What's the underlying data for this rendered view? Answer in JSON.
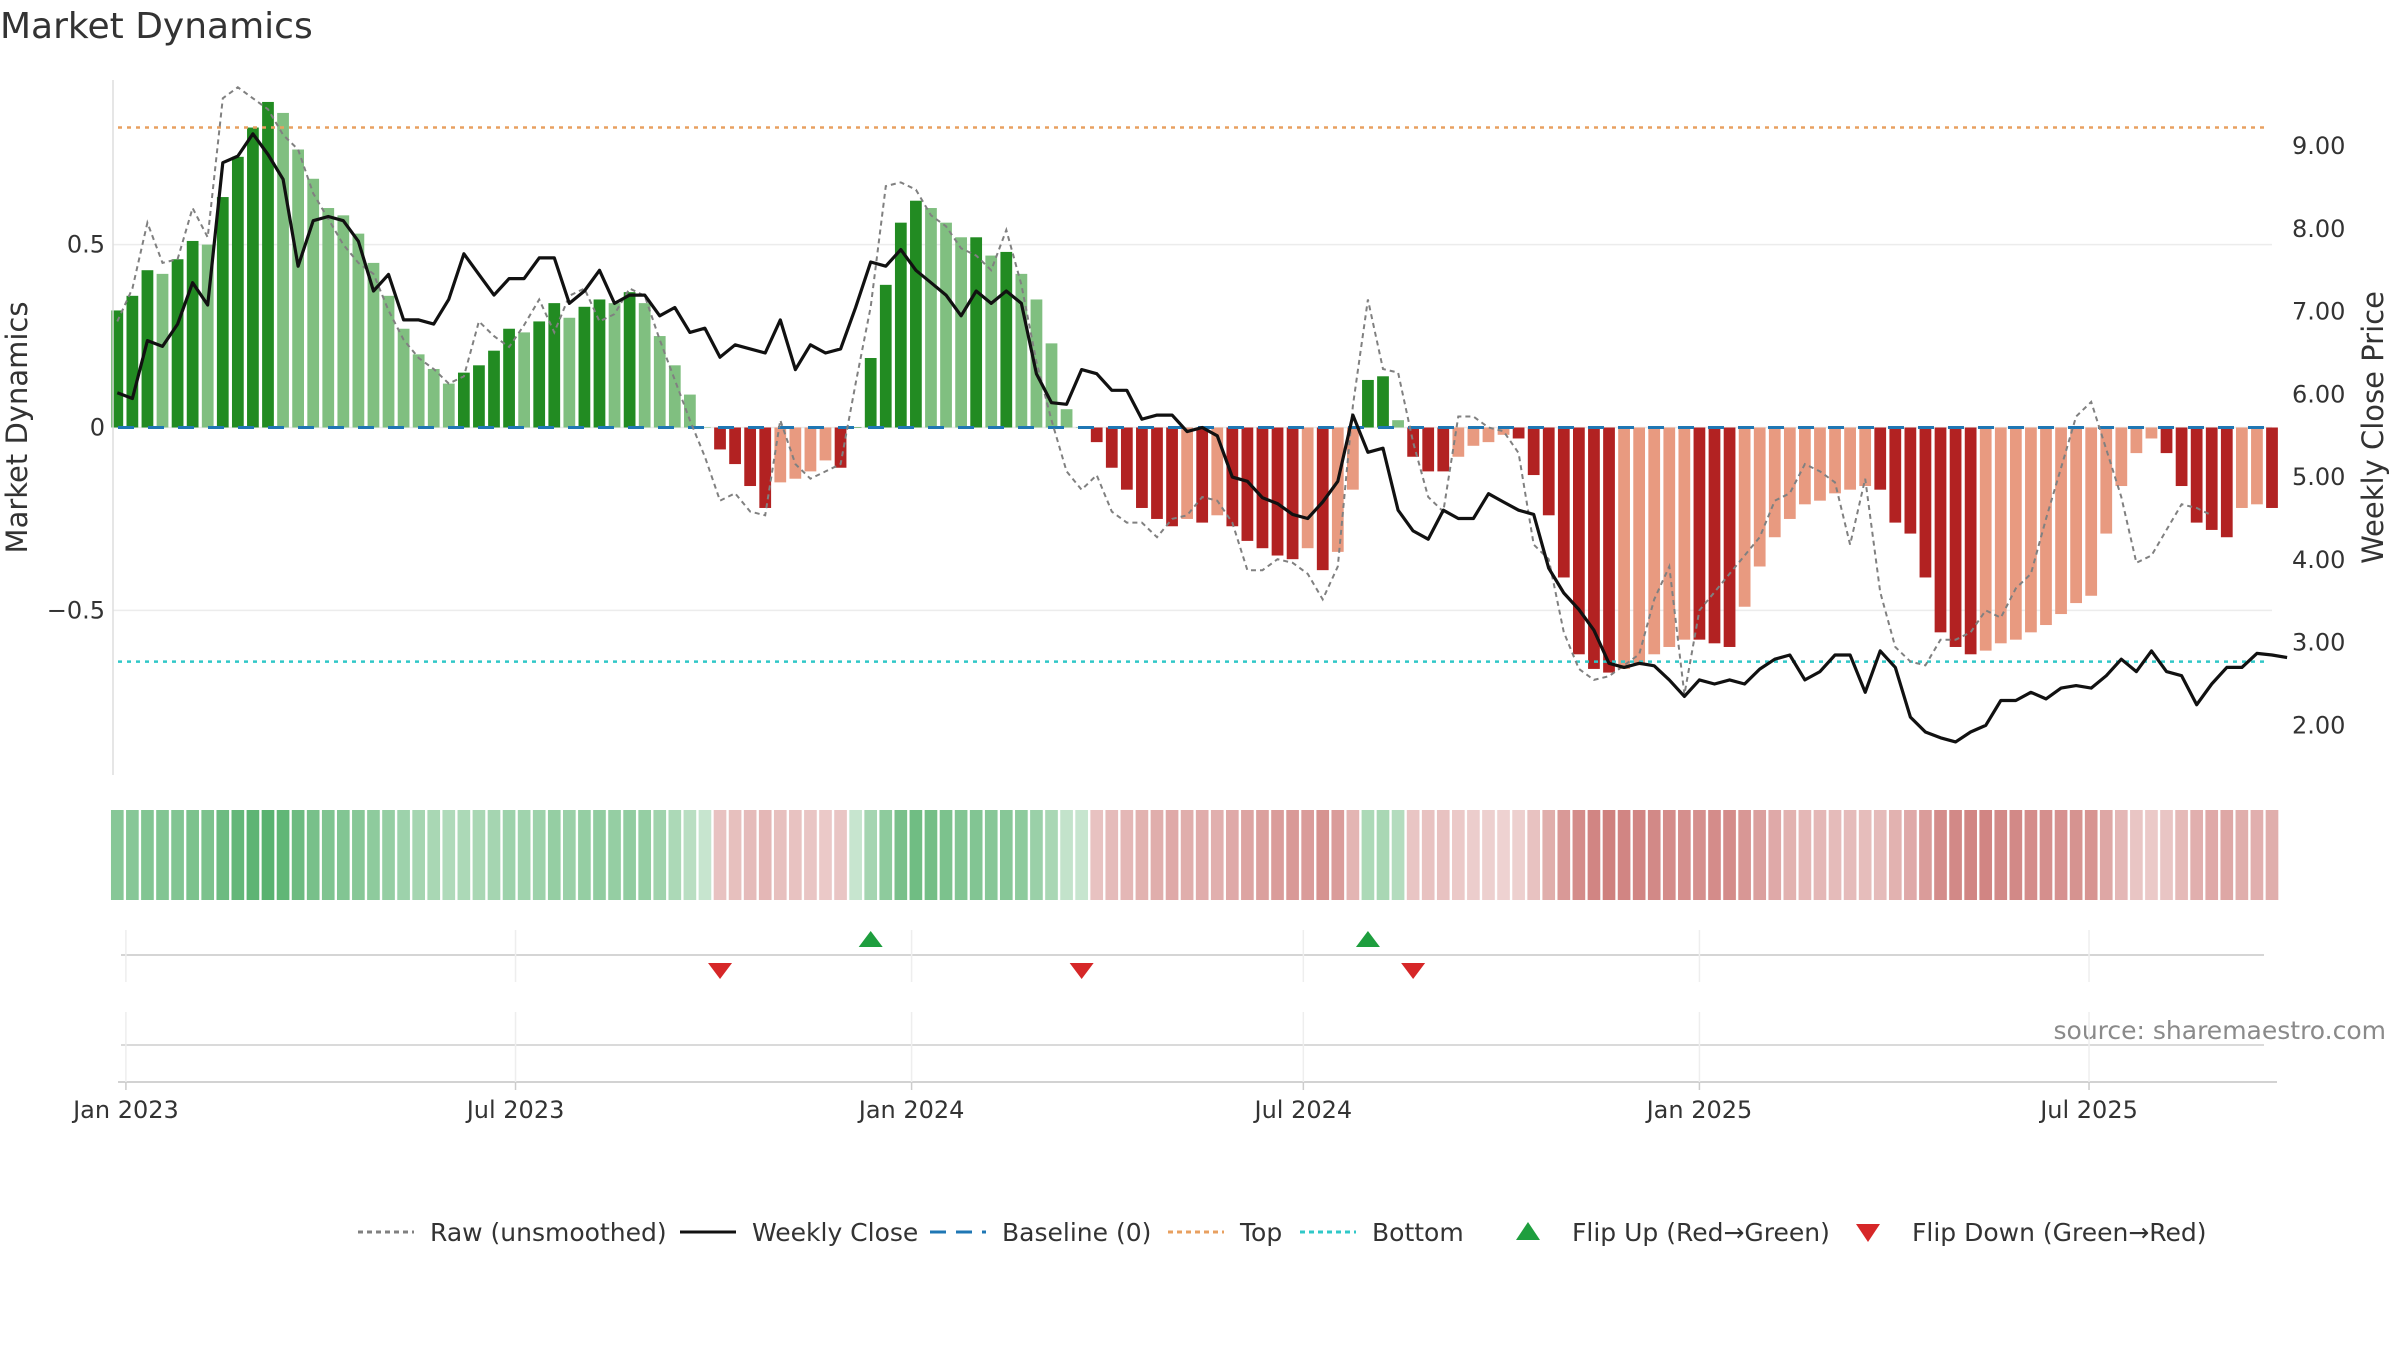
{
  "title": "Market Dynamics",
  "source": "source: sharemaestro.com",
  "colors": {
    "strong_green": "#228b22",
    "light_green": "#80bf80",
    "strong_red": "#b22222",
    "light_red": "#e89a80",
    "raw": "#808080",
    "close": "#111111",
    "baseline": "#1f77b4",
    "top": "#e8a060",
    "bottom": "#30c8c8",
    "flip_up": "#1e9e3e",
    "flip_down": "#d62728"
  },
  "chart_data": {
    "type": "bar",
    "title": "Market Dynamics",
    "ylabel": "Market Dynamics",
    "y2label": "Weekly Close Price",
    "ylim": [
      -0.95,
      0.95
    ],
    "y2lim": [
      1.4,
      9.8
    ],
    "yticks": [
      {
        "value": 0.5,
        "label": "0.5"
      },
      {
        "value": 0,
        "label": "0"
      },
      {
        "value": -0.5,
        "label": "−0.5"
      }
    ],
    "y2ticks": [
      {
        "value": 9,
        "label": "9.00"
      },
      {
        "value": 8,
        "label": "8.00"
      },
      {
        "value": 7,
        "label": "7.00"
      },
      {
        "value": 6,
        "label": "6.00"
      },
      {
        "value": 5,
        "label": "5.00"
      },
      {
        "value": 4,
        "label": "4.00"
      },
      {
        "value": 3,
        "label": "3.00"
      },
      {
        "value": 2,
        "label": "2.00"
      }
    ],
    "xlim": [
      "2022-12-26",
      "2025-09-24"
    ],
    "xticks": [
      {
        "date": "2023-01-01",
        "label": "Jan 2023"
      },
      {
        "date": "2023-07-01",
        "label": "Jul 2023"
      },
      {
        "date": "2024-01-01",
        "label": "Jan 2024"
      },
      {
        "date": "2024-07-01",
        "label": "Jul 2024"
      },
      {
        "date": "2025-01-01",
        "label": "Jan 2025"
      },
      {
        "date": "2025-07-01",
        "label": "Jul 2025"
      }
    ],
    "start_date": "2022-12-28",
    "week_days": 7,
    "top_level": 0.82,
    "bottom_level": -0.64,
    "baseline": 0,
    "dynamics": [
      0.32,
      0.36,
      0.43,
      0.42,
      0.46,
      0.51,
      0.5,
      0.63,
      0.74,
      0.82,
      0.89,
      0.86,
      0.76,
      0.68,
      0.6,
      0.58,
      0.53,
      0.45,
      0.36,
      0.27,
      0.2,
      0.16,
      0.12,
      0.15,
      0.17,
      0.21,
      0.27,
      0.26,
      0.29,
      0.34,
      0.3,
      0.33,
      0.35,
      0.34,
      0.37,
      0.34,
      0.25,
      0.17,
      0.09,
      0.0,
      -0.06,
      -0.1,
      -0.16,
      -0.22,
      -0.15,
      -0.14,
      -0.12,
      -0.09,
      -0.11,
      0.0,
      0.19,
      0.39,
      0.56,
      0.62,
      0.6,
      0.56,
      0.52,
      0.52,
      0.47,
      0.48,
      0.42,
      0.35,
      0.23,
      0.05,
      0.0,
      -0.04,
      -0.11,
      -0.17,
      -0.22,
      -0.25,
      -0.27,
      -0.25,
      -0.26,
      -0.24,
      -0.27,
      -0.31,
      -0.33,
      -0.35,
      -0.36,
      -0.33,
      -0.39,
      -0.34,
      -0.17,
      0.13,
      0.14,
      0.02,
      -0.08,
      -0.12,
      -0.12,
      -0.08,
      -0.05,
      -0.04,
      -0.02,
      -0.03,
      -0.13,
      -0.24,
      -0.41,
      -0.62,
      -0.66,
      -0.67,
      -0.66,
      -0.65,
      -0.62,
      -0.6,
      -0.58,
      -0.58,
      -0.59,
      -0.6,
      -0.49,
      -0.38,
      -0.3,
      -0.25,
      -0.21,
      -0.2,
      -0.18,
      -0.17,
      -0.16,
      -0.17,
      -0.26,
      -0.29,
      -0.41,
      -0.56,
      -0.6,
      -0.62,
      -0.61,
      -0.59,
      -0.58,
      -0.56,
      -0.54,
      -0.51,
      -0.48,
      -0.46,
      -0.29,
      -0.16,
      -0.07,
      -0.03,
      -0.07,
      -0.16,
      -0.26,
      -0.28,
      -0.3,
      -0.22,
      -0.21,
      -0.22
    ],
    "raw": [
      0.29,
      0.38,
      0.56,
      0.45,
      0.46,
      0.6,
      0.52,
      0.9,
      0.93,
      0.9,
      0.87,
      0.8,
      0.76,
      0.64,
      0.57,
      0.5,
      0.45,
      0.42,
      0.32,
      0.24,
      0.19,
      0.16,
      0.12,
      0.14,
      0.29,
      0.25,
      0.22,
      0.28,
      0.35,
      0.26,
      0.36,
      0.38,
      0.29,
      0.31,
      0.38,
      0.36,
      0.24,
      0.13,
      0.02,
      -0.08,
      -0.2,
      -0.18,
      -0.23,
      -0.24,
      0.02,
      -0.1,
      -0.14,
      -0.12,
      -0.1,
      0.12,
      0.33,
      0.66,
      0.67,
      0.65,
      0.58,
      0.55,
      0.49,
      0.47,
      0.43,
      0.54,
      0.39,
      0.18,
      0.02,
      -0.12,
      -0.17,
      -0.13,
      -0.23,
      -0.26,
      -0.26,
      -0.3,
      -0.25,
      -0.24,
      -0.19,
      -0.2,
      -0.26,
      -0.39,
      -0.39,
      -0.36,
      -0.37,
      -0.4,
      -0.47,
      -0.38,
      0.06,
      0.35,
      0.16,
      0.15,
      -0.04,
      -0.19,
      -0.23,
      0.03,
      0.03,
      0.0,
      -0.01,
      -0.07,
      -0.32,
      -0.36,
      -0.56,
      -0.66,
      -0.69,
      -0.68,
      -0.65,
      -0.62,
      -0.47,
      -0.38,
      -0.73,
      -0.5,
      -0.45,
      -0.4,
      -0.35,
      -0.3,
      -0.2,
      -0.18,
      -0.1,
      -0.12,
      -0.15,
      -0.32,
      -0.14,
      -0.45,
      -0.6,
      -0.64,
      -0.65,
      -0.58,
      -0.58,
      -0.56,
      -0.5,
      -0.52,
      -0.44,
      -0.4,
      -0.25,
      -0.11,
      0.03,
      0.07,
      -0.06,
      -0.19,
      -0.37,
      -0.35,
      -0.28,
      -0.21,
      -0.22,
      -0.24
    ],
    "close": [
      6.02,
      5.95,
      6.65,
      6.58,
      6.85,
      7.35,
      7.08,
      8.8,
      8.88,
      9.15,
      8.9,
      8.6,
      7.55,
      8.1,
      8.15,
      8.1,
      7.85,
      7.25,
      7.45,
      6.9,
      6.9,
      6.85,
      7.15,
      7.7,
      7.45,
      7.2,
      7.4,
      7.4,
      7.65,
      7.65,
      7.1,
      7.25,
      7.5,
      7.1,
      7.2,
      7.2,
      6.95,
      7.05,
      6.75,
      6.8,
      6.45,
      6.6,
      6.55,
      6.5,
      6.9,
      6.3,
      6.6,
      6.5,
      6.55,
      7.05,
      7.6,
      7.55,
      7.75,
      7.5,
      7.35,
      7.2,
      6.95,
      7.25,
      7.1,
      7.25,
      7.1,
      6.25,
      5.9,
      5.88,
      6.3,
      6.25,
      6.05,
      6.05,
      5.7,
      5.75,
      5.75,
      5.55,
      5.6,
      5.5,
      5.0,
      4.95,
      4.75,
      4.68,
      4.55,
      4.5,
      4.7,
      4.95,
      5.75,
      5.3,
      5.35,
      4.6,
      4.35,
      4.25,
      4.6,
      4.5,
      4.5,
      4.8,
      4.7,
      4.6,
      4.55,
      3.9,
      3.6,
      3.4,
      3.15,
      2.75,
      2.7,
      2.75,
      2.72,
      2.55,
      2.35,
      2.55,
      2.5,
      2.55,
      2.5,
      2.68,
      2.8,
      2.85,
      2.55,
      2.65,
      2.85,
      2.85,
      2.4,
      2.9,
      2.7,
      2.1,
      1.92,
      1.85,
      1.8,
      1.92,
      2.0,
      2.3,
      2.3,
      2.4,
      2.32,
      2.45,
      2.48,
      2.45,
      2.6,
      2.8,
      2.65,
      2.9,
      2.65,
      2.6,
      2.25,
      2.5,
      2.7,
      2.7,
      2.87,
      2.85,
      2.82
    ],
    "regime_strength": [
      0.55,
      0.55,
      0.58,
      0.58,
      0.58,
      0.62,
      0.62,
      0.72,
      0.78,
      0.82,
      0.85,
      0.8,
      0.72,
      0.65,
      0.6,
      0.58,
      0.55,
      0.5,
      0.45,
      0.4,
      0.35,
      0.32,
      0.28,
      0.3,
      0.32,
      0.35,
      0.4,
      0.38,
      0.4,
      0.45,
      0.42,
      0.45,
      0.48,
      0.45,
      0.48,
      0.45,
      0.38,
      0.3,
      0.22,
      0.12,
      0.2,
      0.22,
      0.25,
      0.28,
      0.22,
      0.2,
      0.18,
      0.15,
      0.18,
      0.12,
      0.35,
      0.5,
      0.65,
      0.7,
      0.68,
      0.62,
      0.58,
      0.58,
      0.55,
      0.55,
      0.5,
      0.42,
      0.32,
      0.15,
      0.12,
      0.2,
      0.25,
      0.28,
      0.32,
      0.35,
      0.38,
      0.35,
      0.36,
      0.34,
      0.38,
      0.42,
      0.45,
      0.48,
      0.5,
      0.48,
      0.55,
      0.48,
      0.3,
      0.3,
      0.32,
      0.25,
      0.18,
      0.2,
      0.2,
      0.15,
      0.12,
      0.1,
      0.08,
      0.1,
      0.2,
      0.35,
      0.5,
      0.6,
      0.65,
      0.68,
      0.65,
      0.65,
      0.62,
      0.6,
      0.58,
      0.58,
      0.6,
      0.6,
      0.52,
      0.45,
      0.38,
      0.32,
      0.28,
      0.28,
      0.25,
      0.25,
      0.24,
      0.25,
      0.32,
      0.38,
      0.48,
      0.6,
      0.62,
      0.65,
      0.65,
      0.62,
      0.62,
      0.6,
      0.58,
      0.56,
      0.55,
      0.54,
      0.4,
      0.28,
      0.18,
      0.15,
      0.18,
      0.26,
      0.34,
      0.38,
      0.4,
      0.35,
      0.34,
      0.35
    ],
    "flips": [
      {
        "type": "down",
        "week": 40
      },
      {
        "type": "up",
        "week": 50
      },
      {
        "type": "down",
        "week": 64
      },
      {
        "type": "up",
        "week": 83
      },
      {
        "type": "down",
        "week": 86
      }
    ],
    "legend": [
      {
        "label": "Raw (unsmoothed)",
        "kind": "dotted-line",
        "color": "#808080"
      },
      {
        "label": "Weekly Close",
        "kind": "solid-line",
        "color": "#111111"
      },
      {
        "label": "Baseline (0)",
        "kind": "dashed-line",
        "color": "#1f77b4"
      },
      {
        "label": "Top",
        "kind": "dotted-line",
        "color": "#e8a060"
      },
      {
        "label": "Bottom",
        "kind": "dotted-line",
        "color": "#30c8c8"
      },
      {
        "label": "Flip Up (Red→Green)",
        "kind": "triangle-up",
        "color": "#1e9e3e"
      },
      {
        "label": "Flip Down (Green→Red)",
        "kind": "triangle-down",
        "color": "#d62728"
      }
    ],
    "legend_position": "bottom-center",
    "grid": true
  }
}
